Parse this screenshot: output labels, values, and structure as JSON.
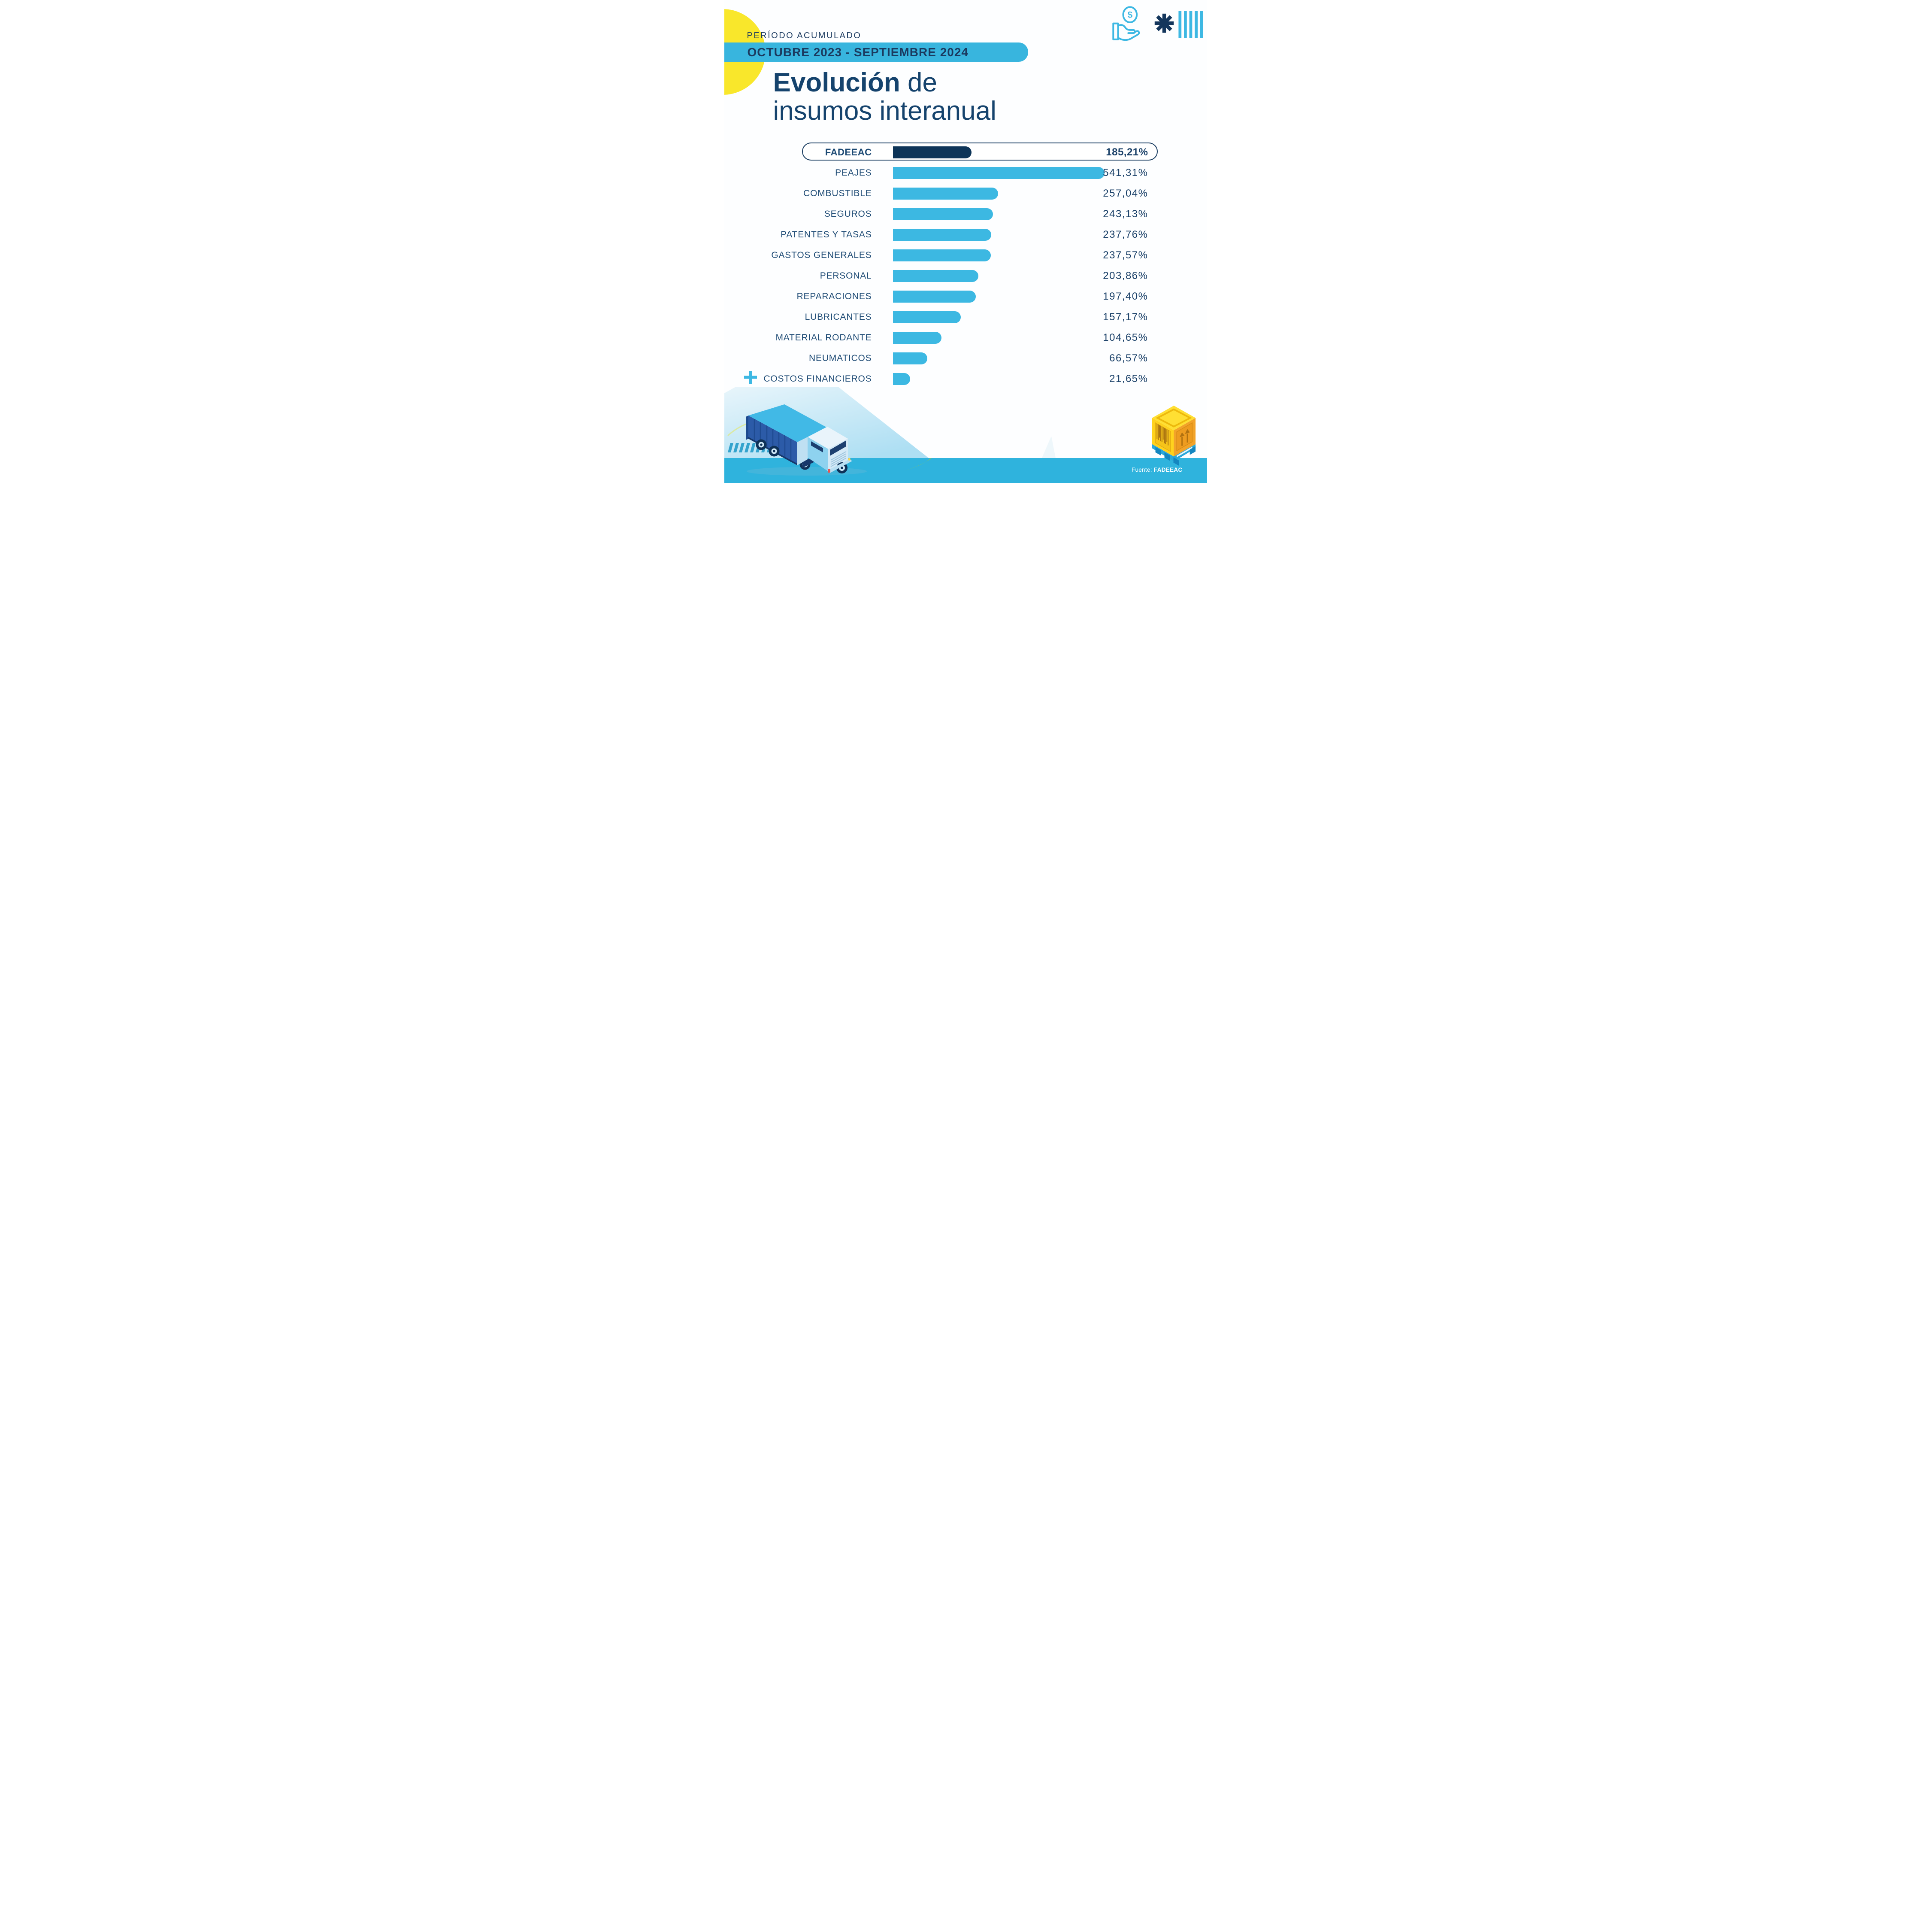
{
  "header": {
    "kicker": "PERÍODO ACUMULADO",
    "banner_text": "OCTUBRE 2023 - SEPTIEMBRE 2024",
    "banner_color": "#38b5de",
    "accent_yellow": "#f9e72b"
  },
  "title": {
    "line1_bold": "Evolución",
    "line1_rest": " de",
    "line2": "insumos interanual"
  },
  "chart_data": {
    "type": "bar",
    "orientation": "horizontal",
    "value_suffix": "%",
    "highlight_category": "FADEEAC",
    "categories": [
      "FADEEAC",
      "PEAJES",
      "COMBUSTIBLE",
      "SEGUROS",
      "PATENTES Y TASAS",
      "GASTOS GENERALES",
      "PERSONAL",
      "REPARACIONES",
      "LUBRICANTES",
      "MATERIAL RODANTE",
      "NEUMATICOS",
      "COSTOS FINANCIEROS"
    ],
    "values": [
      185.21,
      541.31,
      257.04,
      243.13,
      237.76,
      237.57,
      203.86,
      197.4,
      157.17,
      104.65,
      66.57,
      21.65
    ],
    "values_display": [
      "185,21%",
      "541,31%",
      "257,04%",
      "243,13%",
      "237,76%",
      "237,57%",
      "203,86%",
      "197,40%",
      "157,17%",
      "104,65%",
      "66,57%",
      "21,65%"
    ],
    "bar_color": "#3cb8e2",
    "highlight_bar_color": "#0d3458",
    "xlim": [
      0,
      560
    ],
    "grid": false,
    "legend": false
  },
  "footer": {
    "source_label": "Fuente:",
    "source_value": "FADEEAC",
    "band_color": "#2fb3dd"
  },
  "decor": {
    "icons": [
      "coin-hand-icon",
      "asterisk-icon",
      "tally-bars-icon",
      "plus-icon"
    ],
    "illustrations": [
      "isometric-truck",
      "pallet-box"
    ]
  }
}
